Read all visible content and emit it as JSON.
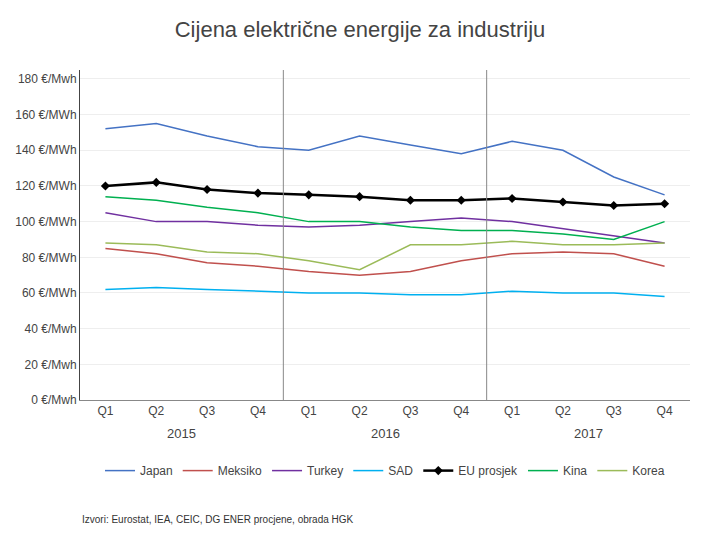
{
  "chart_data": {
    "type": "line",
    "title": "Cijena električne energije za industriju",
    "subtitle": "Izvori: Eurostat, IEA, CEIC, DG ENER procjene, obrada HGK",
    "categories": [
      "Q1",
      "Q2",
      "Q3",
      "Q4",
      "Q1",
      "Q2",
      "Q3",
      "Q4",
      "Q1",
      "Q2",
      "Q3",
      "Q4"
    ],
    "category_groups": [
      "2015",
      "2015",
      "2015",
      "2015",
      "2016",
      "2016",
      "2016",
      "2016",
      "2017",
      "2017",
      "2017",
      "2017"
    ],
    "ylim": [
      0,
      185
    ],
    "yticks": [
      {
        "value": 0,
        "label": "0 €/Mwh"
      },
      {
        "value": 20,
        "label": "20 €/Mwh"
      },
      {
        "value": 40,
        "label": "40 €/Mwh"
      },
      {
        "value": 60,
        "label": "60 €/MWh"
      },
      {
        "value": 80,
        "label": "80 €/MWh"
      },
      {
        "value": 100,
        "label": "100 €/MWh"
      },
      {
        "value": 120,
        "label": "120 €/MWh"
      },
      {
        "value": 140,
        "label": "140 €/MWh"
      },
      {
        "value": 160,
        "label": "160 €/MWh"
      },
      {
        "value": 180,
        "label": "180 €/Mwh"
      }
    ],
    "grid": true,
    "legend": "bottom",
    "series": [
      {
        "name": "Japan",
        "color": "#4472C4",
        "values": [
          152,
          155,
          148,
          142,
          140,
          148,
          143,
          138,
          145,
          140,
          125,
          115
        ]
      },
      {
        "name": "Meksiko",
        "color": "#C0504D",
        "values": [
          85,
          82,
          77,
          75,
          72,
          70,
          72,
          78,
          82,
          83,
          82,
          75
        ]
      },
      {
        "name": "Turkey",
        "color": "#7030A0",
        "values": [
          105,
          100,
          100,
          98,
          97,
          98,
          100,
          102,
          100,
          96,
          92,
          88
        ]
      },
      {
        "name": "SAD",
        "color": "#00B0F0",
        "values": [
          62,
          63,
          62,
          61,
          60,
          60,
          59,
          59,
          61,
          60,
          60,
          58
        ]
      },
      {
        "name": "EU prosjek",
        "color": "#000000",
        "marker": "diamond",
        "values": [
          120,
          122,
          118,
          116,
          115,
          114,
          112,
          112,
          113,
          111,
          109,
          110
        ]
      },
      {
        "name": "Kina",
        "color": "#00B050",
        "values": [
          114,
          112,
          108,
          105,
          100,
          100,
          97,
          95,
          95,
          93,
          90,
          100
        ]
      },
      {
        "name": "Korea",
        "color": "#9BBB59",
        "values": [
          88,
          87,
          83,
          82,
          78,
          73,
          87,
          87,
          89,
          87,
          87,
          88
        ]
      }
    ]
  }
}
